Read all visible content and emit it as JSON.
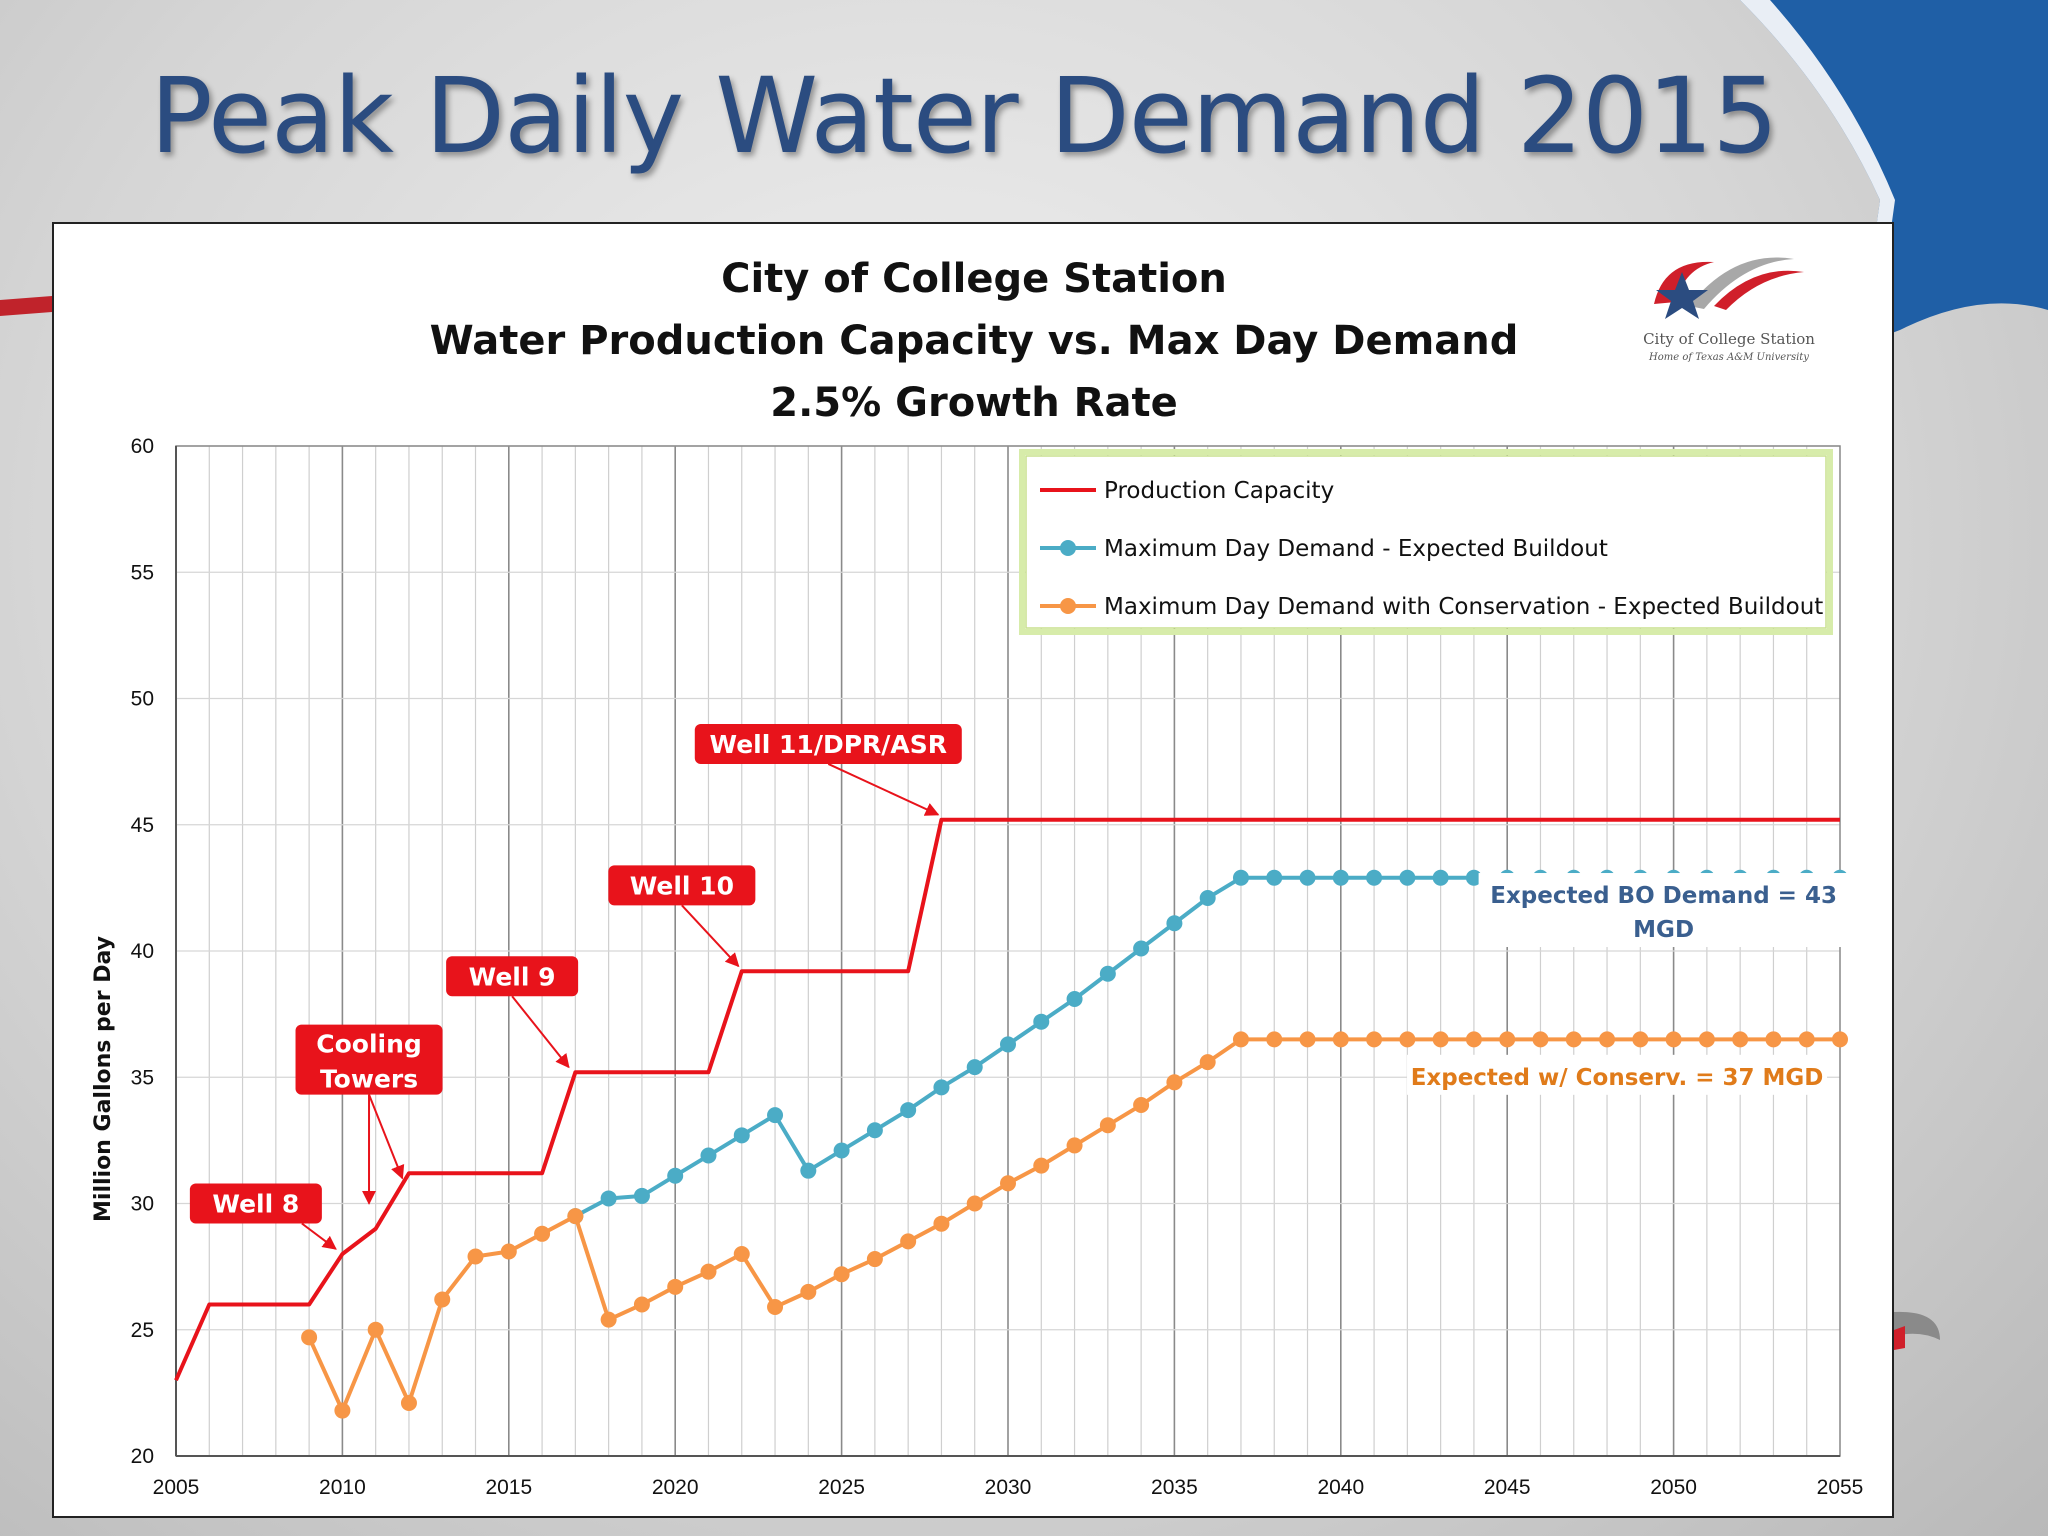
{
  "slide_title": "Peak Daily Water Demand 2015",
  "logo": {
    "name": "City of College Station",
    "tagline": "Home of Texas A&M University",
    "icon": "star-swoosh-logo"
  },
  "colors": {
    "capacity": "#e8131b",
    "demand": "#4bacc6",
    "conservation": "#f79646",
    "title": "#2b4c80",
    "annot_blue": "#3a5f8f",
    "annot_orange": "#e07b1a"
  },
  "chart_data": {
    "type": "line",
    "title": [
      "City of College Station",
      "Water Production Capacity vs. Max Day Demand",
      "2.5% Growth Rate"
    ],
    "xlabel": "",
    "ylabel": "Million Gallons per Day",
    "xlim": [
      2005,
      2055
    ],
    "ylim": [
      20,
      60
    ],
    "x_major_ticks": [
      2005,
      2010,
      2015,
      2020,
      2025,
      2030,
      2035,
      2040,
      2045,
      2050,
      2055
    ],
    "y_ticks": [
      20,
      25,
      30,
      35,
      40,
      45,
      50,
      55,
      60
    ],
    "grid": true,
    "legend_position": "top-right",
    "series": [
      {
        "name": "Production Capacity",
        "color": "#e8131b",
        "markers": false,
        "points": [
          [
            2005,
            23
          ],
          [
            2006,
            26
          ],
          [
            2009,
            26
          ],
          [
            2010,
            28
          ],
          [
            2011,
            29
          ],
          [
            2012,
            31.2
          ],
          [
            2016,
            31.2
          ],
          [
            2017,
            35.2
          ],
          [
            2021,
            35.2
          ],
          [
            2022,
            39.2
          ],
          [
            2027,
            39.2
          ],
          [
            2028,
            45.2
          ],
          [
            2055,
            45.2
          ]
        ]
      },
      {
        "name": "Maximum Day Demand - Expected Buildout",
        "color": "#4bacc6",
        "markers": true,
        "points": [
          [
            2017,
            29.5
          ],
          [
            2018,
            30.2
          ],
          [
            2019,
            30.3
          ],
          [
            2020,
            31.1
          ],
          [
            2021,
            31.9
          ],
          [
            2022,
            32.7
          ],
          [
            2023,
            33.5
          ],
          [
            2024,
            31.3
          ],
          [
            2025,
            32.1
          ],
          [
            2026,
            32.9
          ],
          [
            2027,
            33.7
          ],
          [
            2028,
            34.6
          ],
          [
            2029,
            35.4
          ],
          [
            2030,
            36.3
          ],
          [
            2031,
            37.2
          ],
          [
            2032,
            38.1
          ],
          [
            2033,
            39.1
          ],
          [
            2034,
            40.1
          ],
          [
            2035,
            41.1
          ],
          [
            2036,
            42.1
          ],
          [
            2037,
            42.9
          ],
          [
            2038,
            42.9
          ],
          [
            2039,
            42.9
          ],
          [
            2040,
            42.9
          ],
          [
            2041,
            42.9
          ],
          [
            2042,
            42.9
          ],
          [
            2043,
            42.9
          ],
          [
            2044,
            42.9
          ],
          [
            2045,
            42.9
          ],
          [
            2046,
            42.9
          ],
          [
            2047,
            42.9
          ],
          [
            2048,
            42.9
          ],
          [
            2049,
            42.9
          ],
          [
            2050,
            42.9
          ],
          [
            2051,
            42.9
          ],
          [
            2052,
            42.9
          ],
          [
            2053,
            42.9
          ],
          [
            2054,
            42.9
          ],
          [
            2055,
            42.9
          ]
        ]
      },
      {
        "name": "Maximum Day Demand with Conservation - Expected Buildout",
        "color": "#f79646",
        "markers": true,
        "points": [
          [
            2009,
            24.7
          ],
          [
            2010,
            21.8
          ],
          [
            2011,
            25.0
          ],
          [
            2012,
            22.1
          ],
          [
            2013,
            26.2
          ],
          [
            2014,
            27.9
          ],
          [
            2015,
            28.1
          ],
          [
            2016,
            28.8
          ],
          [
            2017,
            29.5
          ],
          [
            2018,
            25.4
          ],
          [
            2019,
            26.0
          ],
          [
            2020,
            26.7
          ],
          [
            2021,
            27.3
          ],
          [
            2022,
            28.0
          ],
          [
            2023,
            25.9
          ],
          [
            2024,
            26.5
          ],
          [
            2025,
            27.2
          ],
          [
            2026,
            27.8
          ],
          [
            2027,
            28.5
          ],
          [
            2028,
            29.2
          ],
          [
            2029,
            30.0
          ],
          [
            2030,
            30.8
          ],
          [
            2031,
            31.5
          ],
          [
            2032,
            32.3
          ],
          [
            2033,
            33.1
          ],
          [
            2034,
            33.9
          ],
          [
            2035,
            34.8
          ],
          [
            2036,
            35.6
          ],
          [
            2037,
            36.5
          ],
          [
            2038,
            36.5
          ],
          [
            2039,
            36.5
          ],
          [
            2040,
            36.5
          ],
          [
            2041,
            36.5
          ],
          [
            2042,
            36.5
          ],
          [
            2043,
            36.5
          ],
          [
            2044,
            36.5
          ],
          [
            2045,
            36.5
          ],
          [
            2046,
            36.5
          ],
          [
            2047,
            36.5
          ],
          [
            2048,
            36.5
          ],
          [
            2049,
            36.5
          ],
          [
            2050,
            36.5
          ],
          [
            2051,
            36.5
          ],
          [
            2052,
            36.5
          ],
          [
            2053,
            36.5
          ],
          [
            2054,
            36.5
          ],
          [
            2055,
            36.5
          ]
        ]
      }
    ],
    "callouts": [
      {
        "label": [
          "Well 8"
        ],
        "box_center": [
          2007.4,
          30.0
        ],
        "arrow_to": [
          2009.8,
          28.2
        ]
      },
      {
        "label": [
          "Cooling",
          "Towers"
        ],
        "box_center": [
          2010.8,
          35.7
        ],
        "arrow_to": [
          2010.8,
          30.0
        ],
        "arrow_to2": [
          2011.8,
          31.0
        ]
      },
      {
        "label": [
          "Well 9"
        ],
        "box_center": [
          2015.1,
          39.0
        ],
        "arrow_to": [
          2016.8,
          35.4
        ]
      },
      {
        "label": [
          "Well 10"
        ],
        "box_center": [
          2020.2,
          42.6
        ],
        "arrow_to": [
          2021.9,
          39.4
        ]
      },
      {
        "label": [
          "Well 11/DPR/ASR"
        ],
        "box_center": [
          2024.6,
          48.2
        ],
        "arrow_to": [
          2027.9,
          45.4
        ]
      }
    ],
    "annotations": [
      {
        "text": [
          "Expected BO Demand = 43",
          "MGD"
        ],
        "x": 2049.7,
        "y": 41.9,
        "style": "blue"
      },
      {
        "text": [
          "Expected w/ Conserv. = 37 MGD"
        ],
        "x": 2048.3,
        "y": 34.7,
        "style": "orange"
      }
    ]
  }
}
